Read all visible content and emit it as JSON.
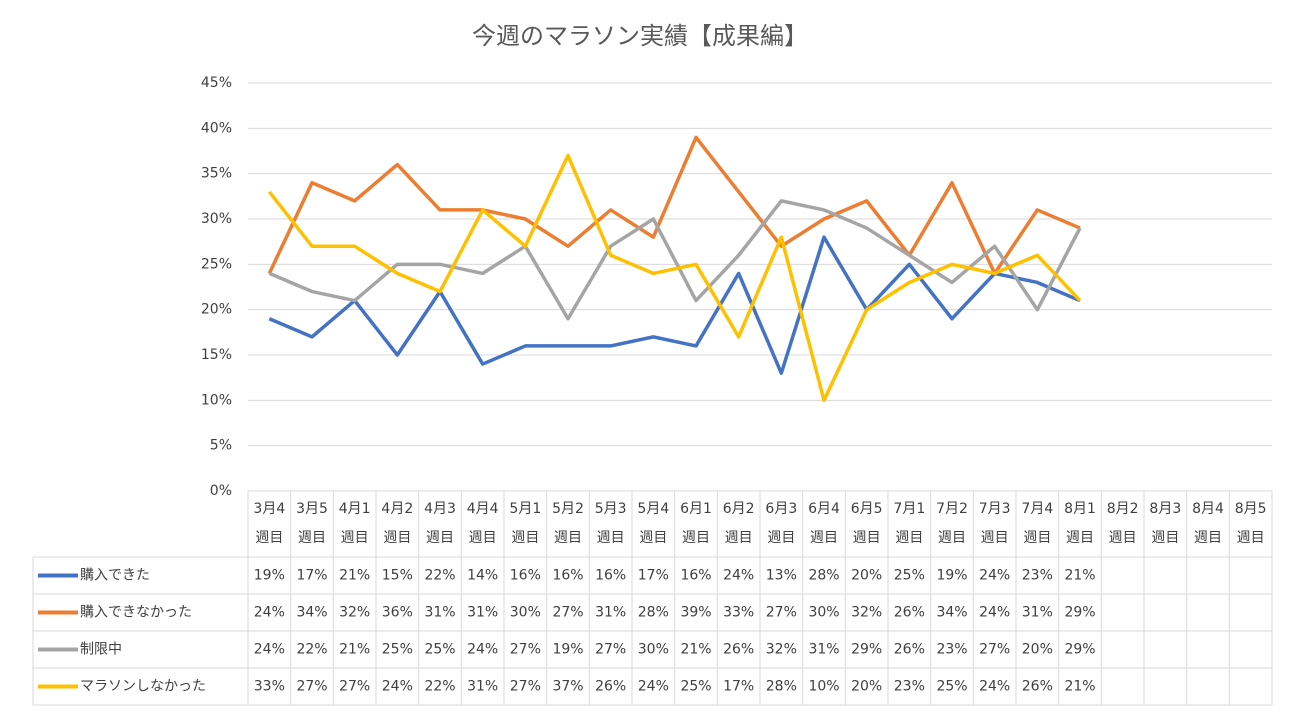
{
  "chart_data": {
    "type": "line",
    "title": "今週のマラソン実績【成果編】",
    "categories": [
      "3月4週目",
      "3月5週目",
      "4月1週目",
      "4月2週目",
      "4月3週目",
      "4月4週目",
      "5月1週目",
      "5月2週目",
      "5月3週目",
      "5月4週目",
      "6月1週目",
      "6月2週目",
      "6月3週目",
      "6月4週目",
      "6月5週目",
      "7月1週目",
      "7月2週目",
      "7月3週目",
      "7月4週目",
      "8月1週目",
      "8月2週目",
      "8月3週目",
      "8月4週目",
      "8月5週目"
    ],
    "series": [
      {
        "name": "購入できた",
        "color": "#4472c4",
        "values": [
          19,
          17,
          21,
          15,
          22,
          14,
          16,
          16,
          16,
          17,
          16,
          24,
          13,
          28,
          20,
          25,
          19,
          24,
          23,
          21,
          null,
          null,
          null,
          null
        ],
        "value_labels": [
          "19%",
          "17%",
          "21%",
          "15%",
          "22%",
          "14%",
          "16%",
          "16%",
          "16%",
          "17%",
          "16%",
          "24%",
          "13%",
          "28%",
          "20%",
          "25%",
          "19%",
          "24%",
          "23%",
          "21%",
          null,
          null,
          null,
          null
        ]
      },
      {
        "name": "購入できなかった",
        "color": "#ed7d31",
        "values": [
          24,
          34,
          32,
          36,
          31,
          31,
          30,
          27,
          31,
          28,
          39,
          33,
          27,
          30,
          32,
          26,
          34,
          24,
          31,
          29,
          null,
          null,
          null,
          null
        ],
        "value_labels": [
          "24%",
          "34%",
          "32%",
          "36%",
          "31%",
          "31%",
          "30%",
          "27%",
          "31%",
          "28%",
          "39%",
          "33%",
          "27%",
          "30%",
          "32%",
          "26%",
          "34%",
          "24%",
          "31%",
          "29%",
          null,
          null,
          null,
          null
        ]
      },
      {
        "name": "制限中",
        "color": "#a5a5a5",
        "values": [
          24,
          22,
          21,
          25,
          25,
          24,
          27,
          19,
          27,
          30,
          21,
          26,
          32,
          31,
          29,
          26,
          23,
          27,
          20,
          29,
          null,
          null,
          null,
          null
        ],
        "value_labels": [
          "24%",
          "22%",
          "21%",
          "25%",
          "25%",
          "24%",
          "27%",
          "19%",
          "27%",
          "30%",
          "21%",
          "26%",
          "32%",
          "31%",
          "29%",
          "26%",
          "23%",
          "27%",
          "20%",
          "29%",
          null,
          null,
          null,
          null
        ]
      },
      {
        "name": "マラソンしなかった",
        "color": "#ffc000",
        "values": [
          33,
          27,
          27,
          24,
          22,
          31,
          27,
          37,
          26,
          24,
          25,
          17,
          28,
          10,
          20,
          23,
          25,
          24,
          26,
          21,
          null,
          null,
          null,
          null
        ],
        "value_labels": [
          "33%",
          "27%",
          "27%",
          "24%",
          "22%",
          "31%",
          "27%",
          "37%",
          "26%",
          "24%",
          "25%",
          "17%",
          "28%",
          "10%",
          "20%",
          "23%",
          "25%",
          "24%",
          "26%",
          "21%",
          null,
          null,
          null,
          null
        ]
      }
    ],
    "ylim": [
      0,
      45
    ],
    "yticks": [
      {
        "value": 0,
        "label": "0%"
      },
      {
        "value": 5,
        "label": "5%"
      },
      {
        "value": 10,
        "label": "10%"
      },
      {
        "value": 15,
        "label": "15%"
      },
      {
        "value": 20,
        "label": "20%"
      },
      {
        "value": 25,
        "label": "25%"
      },
      {
        "value": 30,
        "label": "30%"
      },
      {
        "value": 35,
        "label": "35%"
      },
      {
        "value": 40,
        "label": "40%"
      },
      {
        "value": 45,
        "label": "45%"
      }
    ],
    "grid": true
  }
}
